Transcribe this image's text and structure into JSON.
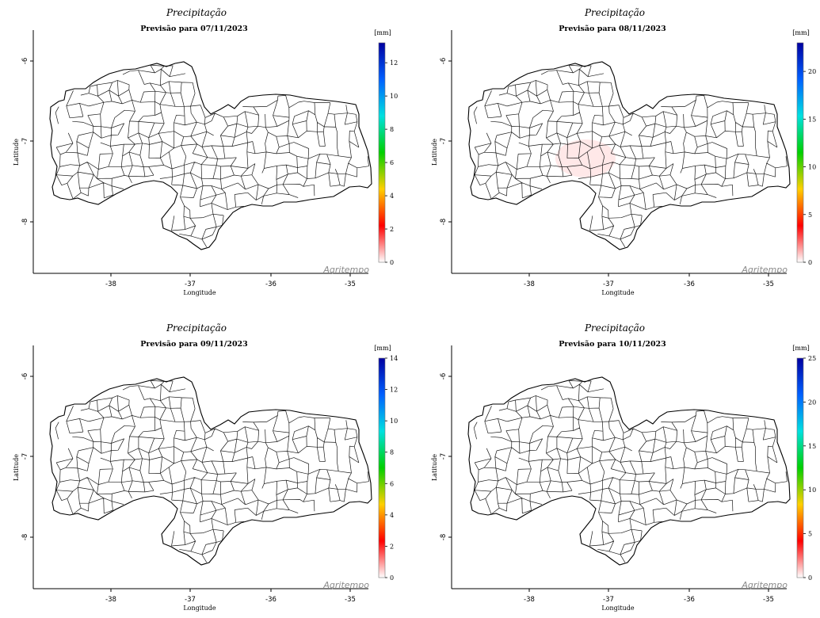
{
  "page": {
    "background": "#ffffff"
  },
  "panels": [
    {
      "title": "Precipitação",
      "subtitle": "Previsão para 07/11/2023",
      "xlabel": "Longitude",
      "ylabel": "Latitude",
      "xticks": [
        "-38",
        "-37",
        "-36",
        "-35"
      ],
      "yticks": [
        "-6",
        "-7",
        "-8"
      ],
      "colorbar": {
        "unit": "[mm]",
        "ticks": [
          "0",
          "2",
          "4",
          "6",
          "8",
          "10",
          "12"
        ],
        "max": 13.2
      },
      "watermark": "Agritempo",
      "overlay": "none"
    },
    {
      "title": "Precipitação",
      "subtitle": "Previsão para 08/11/2023",
      "xlabel": "Longitude",
      "ylabel": "Latitude",
      "xticks": [
        "-38",
        "-37",
        "-36",
        "-35"
      ],
      "yticks": [
        "-6",
        "-7",
        "-8"
      ],
      "colorbar": {
        "unit": "[mm]",
        "ticks": [
          "0",
          "5",
          "10",
          "15",
          "20"
        ],
        "max": 23
      },
      "watermark": "Agritempo",
      "overlay": "light-pink"
    },
    {
      "title": "Precipitação",
      "subtitle": "Previsão para 09/11/2023",
      "xlabel": "Longitude",
      "ylabel": "Latitude",
      "xticks": [
        "-38",
        "-37",
        "-36",
        "-35"
      ],
      "yticks": [
        "-6",
        "-7",
        "-8"
      ],
      "colorbar": {
        "unit": "[mm]",
        "ticks": [
          "0",
          "2",
          "4",
          "6",
          "8",
          "10",
          "12",
          "14"
        ],
        "max": 14
      },
      "watermark": "Agritempo",
      "overlay": "none"
    },
    {
      "title": "Precipitação",
      "subtitle": "Previsão para 10/11/2023",
      "xlabel": "Longitude",
      "ylabel": "Latitude",
      "xticks": [
        "-38",
        "-37",
        "-36",
        "-35"
      ],
      "yticks": [
        "-6",
        "-7",
        "-8"
      ],
      "colorbar": {
        "unit": "[mm]",
        "ticks": [
          "0",
          "5",
          "10",
          "15",
          "20",
          "25"
        ],
        "max": 25
      },
      "watermark": "Agritempo",
      "overlay": "none"
    }
  ],
  "colors": {
    "state_fill": "#ffffff",
    "border": "#000000",
    "municipal_lines": "#1a1a1a",
    "colorbar_stops": [
      "#ffffff",
      "#ff0000",
      "#ffd000",
      "#00d000",
      "#00e0e0",
      "#0060ff",
      "#0000a0"
    ],
    "rain_overlay": "#ffd6d6"
  },
  "icons": [
    "agritempo-logo"
  ]
}
